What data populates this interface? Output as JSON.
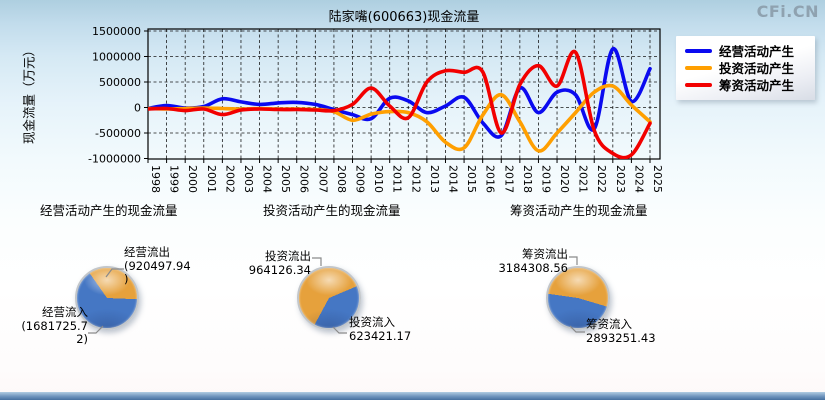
{
  "watermark": "CFi.CN",
  "yticks": [
    "1500000",
    "1000000",
    "500000",
    "0",
    "-500000",
    "-1000000"
  ],
  "chart_data": [
    {
      "type": "line",
      "title": "陆家嘴(600663)现金流量",
      "ylabel": "现金流量（万元）",
      "ylim": [
        -1000000,
        1500000
      ],
      "ytick_interval": 500000,
      "grid": "dashed",
      "legend_position": "right",
      "x_years": [
        1998,
        1999,
        2000,
        2001,
        2002,
        2003,
        2004,
        2005,
        2006,
        2007,
        2008,
        2009,
        2010,
        2011,
        2012,
        2013,
        2014,
        2015,
        2016,
        2017,
        2018,
        2019,
        2020,
        2021,
        2022,
        2023,
        2024,
        2025
      ],
      "series": [
        {
          "name": "经营活动产生",
          "color": "#0a0af0",
          "values": [
            -20000,
            40000,
            -10000,
            20000,
            170000,
            110000,
            60000,
            90000,
            100000,
            60000,
            -40000,
            -140000,
            -220000,
            180000,
            130000,
            -100000,
            30000,
            200000,
            -300000,
            -550000,
            380000,
            -100000,
            300000,
            250000,
            -420000,
            1150000,
            120000,
            760000
          ]
        },
        {
          "name": "投资活动产生",
          "color": "#ff9f00",
          "values": [
            -20000,
            -30000,
            -20000,
            -10000,
            -20000,
            -30000,
            -20000,
            -30000,
            -30000,
            -40000,
            -80000,
            -250000,
            -130000,
            -80000,
            -100000,
            -280000,
            -680000,
            -790000,
            -150000,
            250000,
            -280000,
            -850000,
            -500000,
            -100000,
            300000,
            420000,
            50000,
            -280000
          ]
        },
        {
          "name": "筹资活动产生",
          "color": "#f20000",
          "values": [
            -30000,
            -20000,
            -60000,
            -30000,
            -140000,
            -50000,
            -30000,
            -40000,
            -40000,
            -50000,
            -60000,
            60000,
            380000,
            30000,
            -200000,
            500000,
            720000,
            690000,
            700000,
            -500000,
            450000,
            820000,
            420000,
            1080000,
            -450000,
            -900000,
            -930000,
            -310000
          ]
        }
      ]
    },
    {
      "type": "pie",
      "title": "经营活动产生的现金流量",
      "start_angle_deg": 325,
      "slices": [
        {
          "label": "经营流出",
          "value": 920497.94,
          "color": "#e6a13c",
          "label_lines": "经营流出\n(920497.94\n)"
        },
        {
          "label": "经营流入",
          "value": 1681725.72,
          "color": "#4577c4",
          "label_lines": "经营流入\n(1681725.7\n2)"
        }
      ]
    },
    {
      "type": "pie",
      "title": "投资活动产生的现金流量",
      "start_angle_deg": 67,
      "slices": [
        {
          "label": "投资流入",
          "value": 623421.17,
          "color": "#4577c4",
          "label_lines": "投资流入\n623421.17"
        },
        {
          "label": "投资流出",
          "value": 964126.34,
          "color": "#e6a13c",
          "label_lines": "投资流出\n964126.34"
        }
      ]
    },
    {
      "type": "pie",
      "title": "筹资活动产生的现金流量",
      "start_angle_deg": 278,
      "slices": [
        {
          "label": "筹资流出",
          "value": 3184308.56,
          "color": "#e6a13c",
          "label_lines": "筹资流出\n3184308.56"
        },
        {
          "label": "筹资流入",
          "value": 2893251.43,
          "color": "#4577c4",
          "label_lines": "筹资流入\n2893251.43"
        }
      ]
    }
  ]
}
